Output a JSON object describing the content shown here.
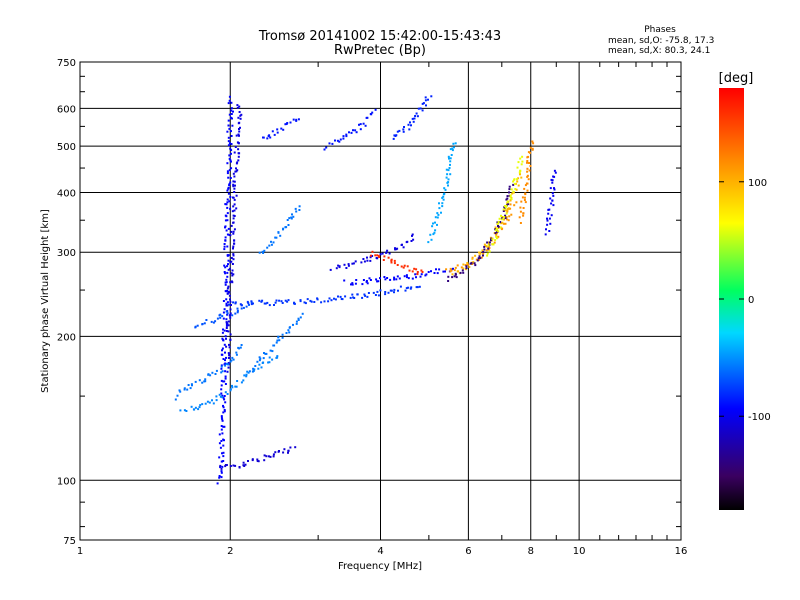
{
  "chart_data": {
    "type": "scatter",
    "title": "Tromsø 20141002 15:42:00-15:43:43",
    "subtitle": "RwPretec (Bp)",
    "xlabel": "Frequency [MHz]",
    "ylabel": "Stationary phase Virtual Height [km]",
    "x_scale": "log",
    "y_scale": "log",
    "xlim": [
      1,
      16
    ],
    "ylim": [
      75,
      750
    ],
    "x_ticks": [
      1,
      2,
      4,
      6,
      8,
      10,
      16
    ],
    "x_tick_labels": [
      "1",
      "2",
      "4",
      "6",
      "8",
      "10",
      "16"
    ],
    "y_ticks": [
      75,
      100,
      200,
      300,
      400,
      500,
      600,
      750
    ],
    "y_tick_labels": [
      "75",
      "100",
      "200",
      "300",
      "400",
      "500",
      "600",
      "750"
    ],
    "grid": true,
    "stats": {
      "heading": "Phases",
      "line_o": "mean, sd,O: -75.8, 17.3",
      "line_x": "mean, sd,X: 80.3, 24.1"
    },
    "colorbar": {
      "label": "[deg]",
      "range": [
        -180,
        180
      ],
      "ticks": [
        100,
        0,
        -100
      ],
      "tick_labels": [
        "100",
        "0",
        "-100"
      ],
      "colormap": "rainbow-black-to-red"
    },
    "series": [
      {
        "traces": [
          {
            "x": [
              1.9,
              1.92,
              1.94,
              1.96,
              1.98,
              2.0
            ],
            "y": [
              100,
              130,
              200,
              320,
              480,
              640
            ],
            "phase": -95
          },
          {
            "x": [
              1.96,
              1.99,
              2.02,
              2.05,
              2.08
            ],
            "y": [
              170,
              250,
              350,
              480,
              620
            ],
            "phase": -105
          },
          {
            "x": [
              1.9,
              2.0,
              2.1,
              2.2,
              2.35,
              2.5,
              2.7
            ],
            "y": [
              107,
              108,
              108,
              110,
              112,
              115,
              118
            ],
            "phase": -110
          },
          {
            "x": [
              1.55,
              1.6,
              1.7,
              1.8,
              1.9,
              2.0,
              2.1
            ],
            "y": [
              150,
              155,
              160,
              165,
              170,
              180,
              195
            ],
            "phase": -60
          },
          {
            "x": [
              1.6,
              1.7,
              1.8,
              1.9,
              2.0,
              2.2,
              2.5
            ],
            "y": [
              140,
              143,
              145,
              150,
              155,
              170,
              185
            ],
            "phase": -55
          },
          {
            "x": [
              1.7,
              1.8,
              1.9,
              2.0,
              2.1,
              2.2
            ],
            "y": [
              210,
              215,
              220,
              225,
              230,
              235
            ],
            "phase": -70
          },
          {
            "x": [
              2.0,
              2.3,
              2.7,
              3.0,
              3.3,
              3.7,
              4.2,
              4.8
            ],
            "y": [
              235,
              236,
              237,
              239,
              242,
              245,
              250,
              258
            ],
            "phase": -80
          },
          {
            "x": [
              2.2,
              2.35,
              2.5,
              2.65,
              2.8
            ],
            "y": [
              170,
              185,
              200,
              210,
              225
            ],
            "phase": -60
          },
          {
            "x": [
              2.3,
              2.45,
              2.6,
              2.75
            ],
            "y": [
              300,
              320,
              350,
              380
            ],
            "phase": -60
          },
          {
            "x": [
              2.3,
              2.4,
              2.5,
              2.6,
              2.75
            ],
            "y": [
              520,
              530,
              540,
              560,
              580
            ],
            "phase": -90
          },
          {
            "x": [
              3.1,
              3.3,
              3.5,
              3.7,
              3.9
            ],
            "y": [
              500,
              520,
              540,
              560,
              600
            ],
            "phase": -90
          },
          {
            "x": [
              3.2,
              3.5,
              3.8,
              4.1,
              4.4,
              4.7
            ],
            "y": [
              280,
              285,
              292,
              300,
              312,
              330
            ],
            "phase": -105
          },
          {
            "x": [
              3.4,
              3.7,
              4.0,
              4.4,
              4.8,
              5.2,
              5.6
            ],
            "y": [
              260,
              262,
              264,
              266,
              270,
              275,
              280
            ],
            "phase": -95
          },
          {
            "x": [
              4.2,
              4.4,
              4.6,
              4.8,
              5.0
            ],
            "y": [
              520,
              540,
              560,
              600,
              650
            ],
            "phase": -85
          },
          {
            "x": [
              5.0,
              5.2,
              5.4,
              5.5,
              5.6
            ],
            "y": [
              320,
              360,
              420,
              480,
              520
            ],
            "phase": -45
          },
          {
            "x": [
              5.4,
              5.8,
              6.2,
              6.6,
              7.0,
              7.4
            ],
            "y": [
              275,
              282,
              292,
              310,
              340,
              390
            ],
            "phase": 110
          },
          {
            "x": [
              5.6,
              6.0,
              6.4,
              6.8,
              7.2,
              7.6
            ],
            "y": [
              272,
              285,
              305,
              335,
              375,
              440
            ],
            "phase": 95
          },
          {
            "x": [
              5.4,
              5.8,
              6.2,
              6.6,
              7.0,
              7.3
            ],
            "y": [
              265,
              275,
              290,
              315,
              355,
              420
            ],
            "phase": -140
          },
          {
            "x": [
              6.5,
              6.8,
              7.1,
              7.4,
              7.7
            ],
            "y": [
              300,
              330,
              370,
              420,
              480
            ],
            "phase": 60
          },
          {
            "x": [
              7.6,
              7.7,
              7.8,
              7.9,
              8.0
            ],
            "y": [
              350,
              380,
              420,
              470,
              520
            ],
            "phase": 115
          },
          {
            "x": [
              8.6,
              8.7,
              8.8,
              8.9
            ],
            "y": [
              330,
              360,
              400,
              450
            ],
            "phase": -100
          },
          {
            "x": [
              3.8,
              4.0,
              4.3,
              4.6,
              4.9
            ],
            "y": [
              300,
              295,
              285,
              278,
              272
            ],
            "phase": 160
          }
        ]
      }
    ]
  }
}
